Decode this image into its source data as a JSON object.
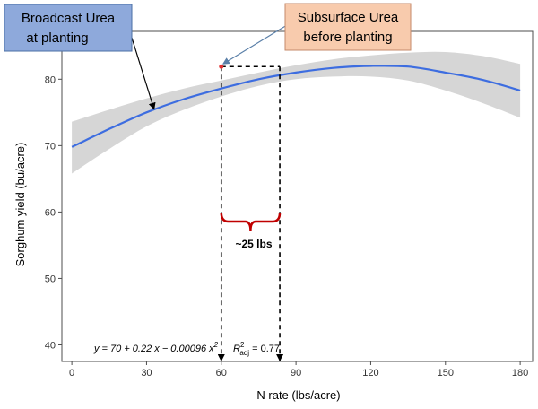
{
  "chart_data": {
    "type": "line",
    "xlabel": "N rate (lbs/acre)",
    "ylabel": "Sorghum yield (bu/acre)",
    "xlim": [
      -4,
      185
    ],
    "ylim": [
      37.5,
      87.2
    ],
    "x_ticks": [
      "0",
      "30",
      "60",
      "90",
      "120",
      "150",
      "180"
    ],
    "y_ticks": [
      "40",
      "50",
      "60",
      "70",
      "80"
    ],
    "grid": false,
    "series": [
      {
        "x": [
          0,
          15,
          30,
          45,
          60,
          75,
          90,
          105,
          120,
          135,
          150,
          165,
          180
        ],
        "y": [
          69.8,
          72.5,
          75.0,
          77.0,
          78.6,
          80.0,
          81.0,
          81.7,
          82.0,
          81.9,
          81.0,
          79.9,
          78.3
        ],
        "ci_upper": [
          73.6,
          75.4,
          77.1,
          78.6,
          79.8,
          81.0,
          82.1,
          83.0,
          83.6,
          84.0,
          84.1,
          83.5,
          82.3
        ],
        "ci_lower": [
          65.8,
          69.5,
          72.9,
          75.4,
          77.4,
          79.0,
          80.0,
          80.4,
          80.4,
          79.8,
          78.3,
          76.4,
          74.2
        ],
        "color": "#3d6de0",
        "ci_color": "#d6d6d6"
      }
    ],
    "annotations": {
      "equation_prefix": "y = 70 + 0.22 x − 0.00096 x",
      "equation_exponent": "2",
      "r2_symbol": "R",
      "r2_super": "2",
      "r2_sub": "adj",
      "r2_value": " = 0.77",
      "broadcast_label_line1": "Broadcast Urea",
      "broadcast_label_line2": "at planting",
      "subsurface_label_line1": "Subsurface Urea",
      "subsurface_label_line2": "before planting",
      "difference_label": "~25 lbs",
      "subsurface_point": {
        "x": 60,
        "y": 81.9
      },
      "broadcast_point": {
        "x": 83.5,
        "y": 81.9
      },
      "broadcast_arrow_target": {
        "x": 33,
        "y": 75.5
      }
    },
    "colors": {
      "broadcast_box": "#8ea9db",
      "subsurface_box": "#f8cbad",
      "brace": "#c00000",
      "marker": "#e03030"
    }
  }
}
